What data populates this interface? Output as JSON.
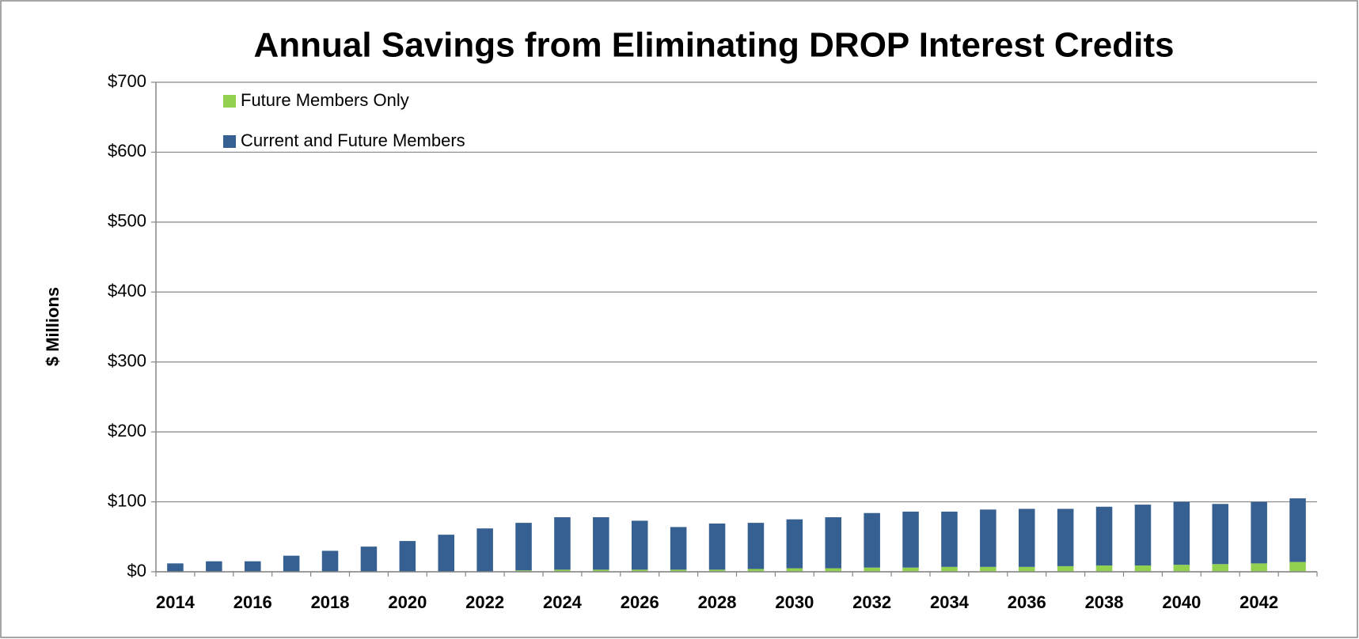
{
  "chart_data": {
    "type": "bar",
    "stacked": true,
    "title": "Annual Savings from Eliminating DROP Interest Credits",
    "y_label": "$ Millions",
    "categories": [
      "2014",
      null,
      "2016",
      null,
      "2018",
      null,
      "2020",
      null,
      "2022",
      null,
      "2024",
      null,
      "2026",
      null,
      "2028",
      null,
      "2030",
      null,
      "2032",
      null,
      "2034",
      null,
      "2036",
      null,
      "2038",
      null,
      "2040",
      null,
      "2042",
      null
    ],
    "series": [
      {
        "name": "Future Members Only",
        "color": "#92d050",
        "values": [
          0,
          0,
          0,
          0,
          0,
          0,
          0,
          0,
          0,
          2,
          3,
          3,
          3,
          3,
          3,
          4,
          5,
          5,
          6,
          6,
          7,
          7,
          7,
          8,
          9,
          9,
          10,
          11,
          12,
          14
        ]
      },
      {
        "name": "Current and Future Members",
        "color": "#376092",
        "values": [
          12,
          15,
          15,
          23,
          30,
          36,
          44,
          53,
          62,
          68,
          75,
          75,
          70,
          61,
          66,
          66,
          70,
          73,
          78,
          80,
          79,
          82,
          83,
          82,
          84,
          87,
          90,
          86,
          88,
          91
        ]
      }
    ],
    "ylim": [
      0,
      700
    ],
    "yticks": [
      {
        "value": 0,
        "label": "$0"
      },
      {
        "value": 100,
        "label": "$100"
      },
      {
        "value": 200,
        "label": "$200"
      },
      {
        "value": 300,
        "label": "$300"
      },
      {
        "value": 400,
        "label": "$400"
      },
      {
        "value": 500,
        "label": "$500"
      },
      {
        "value": 600,
        "label": "$600"
      },
      {
        "value": 700,
        "label": "$700"
      }
    ],
    "grid": true,
    "legend": "upper left"
  }
}
